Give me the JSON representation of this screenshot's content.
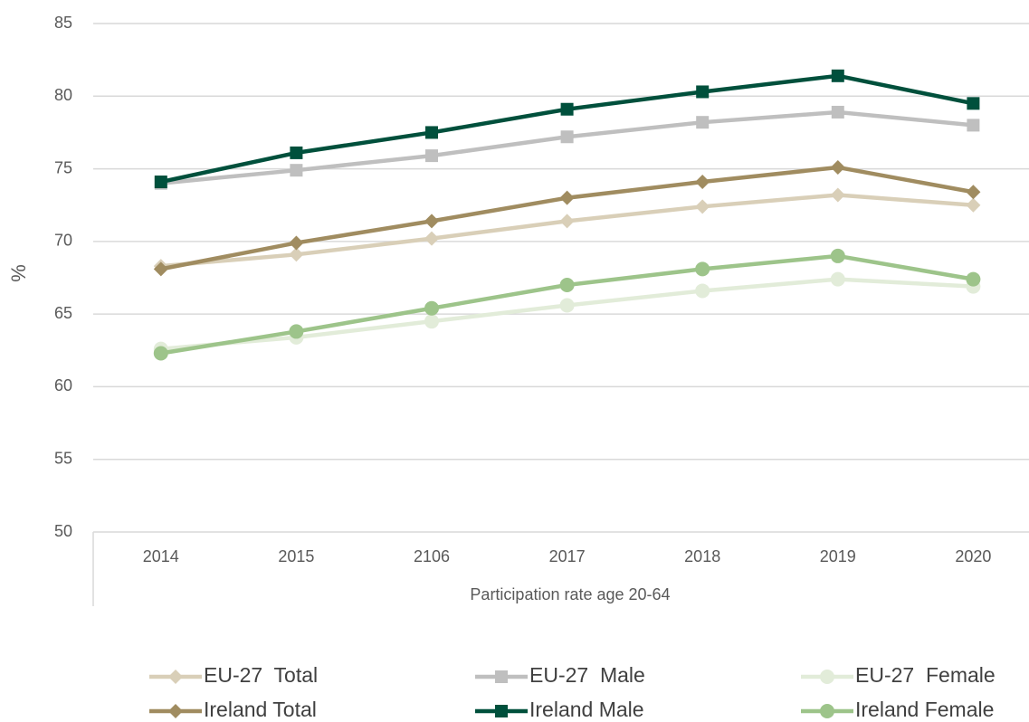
{
  "chart_data": {
    "type": "line",
    "x_label": "Participation rate age 20-64",
    "y_label": "%",
    "categories": [
      "2014",
      "2015",
      "2106",
      "2017",
      "2018",
      "2019",
      "2020"
    ],
    "ylim": [
      50,
      85
    ],
    "yticks": [
      50,
      55,
      60,
      65,
      70,
      75,
      80,
      85
    ],
    "grid": true,
    "legend": "bottom",
    "series": [
      {
        "name": "EU-27  Total",
        "color": "#d9cfb8",
        "marker": "diamond",
        "values": [
          68.3,
          69.1,
          70.2,
          71.4,
          72.4,
          73.2,
          72.5
        ]
      },
      {
        "name": "EU-27  Male",
        "color": "#bfbfbf",
        "marker": "square",
        "values": [
          74.0,
          74.9,
          75.9,
          77.2,
          78.2,
          78.9,
          78.0
        ]
      },
      {
        "name": "EU-27  Female",
        "color": "#e2ecd9",
        "marker": "circle",
        "values": [
          62.6,
          63.4,
          64.5,
          65.6,
          66.6,
          67.4,
          66.9
        ]
      },
      {
        "name": "Ireland Total",
        "color": "#a08c60",
        "marker": "diamond",
        "values": [
          68.1,
          69.9,
          71.4,
          73.0,
          74.1,
          75.1,
          73.4
        ]
      },
      {
        "name": "Ireland Male",
        "color": "#00503c",
        "marker": "square",
        "values": [
          74.1,
          76.1,
          77.5,
          79.1,
          80.3,
          81.4,
          79.5
        ]
      },
      {
        "name": "Ireland Female",
        "color": "#9dc48a",
        "marker": "circle",
        "values": [
          62.3,
          63.8,
          65.4,
          67.0,
          68.1,
          69.0,
          67.4
        ]
      }
    ]
  }
}
